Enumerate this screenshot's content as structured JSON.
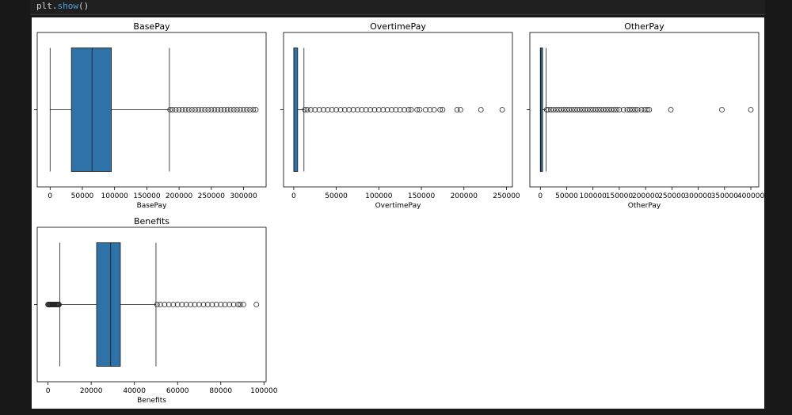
{
  "code": {
    "object": "plt",
    "dot": ".",
    "method": "show",
    "parens": "()"
  },
  "colors": {
    "box_fill": "#2e72a8",
    "box_edge": "#1a1a1a",
    "page_bg": "#181818",
    "figure_bg": "#ffffff"
  },
  "chart_data": [
    {
      "type": "boxplot",
      "title": "BasePay",
      "xlabel": "BasePay",
      "xlim": [
        -20000,
        335000
      ],
      "ticks": [
        0,
        50000,
        100000,
        150000,
        200000,
        250000,
        300000
      ],
      "tick_labels": [
        "0",
        "50000",
        "100000",
        "150000",
        "200000",
        "250000",
        "300000"
      ],
      "whisker_low": 0,
      "q1": 33000,
      "median": 65000,
      "q3": 95000,
      "whisker_high": 185000,
      "fliers_low": [],
      "fliers_high": [
        186000,
        190000,
        195000,
        200000,
        205000,
        210000,
        215000,
        220000,
        225000,
        230000,
        235000,
        240000,
        245000,
        250000,
        255000,
        260000,
        265000,
        270000,
        275000,
        280000,
        285000,
        290000,
        295000,
        300000,
        305000,
        310000,
        315000,
        319000
      ]
    },
    {
      "type": "boxplot",
      "title": "OvertimePay",
      "xlabel": "OvertimePay",
      "xlim": [
        -12000,
        257000
      ],
      "ticks": [
        0,
        50000,
        100000,
        150000,
        200000,
        250000
      ],
      "tick_labels": [
        "0",
        "50000",
        "100000",
        "150000",
        "200000",
        "250000"
      ],
      "whisker_low": 0,
      "q1": 0,
      "median": 0,
      "q3": 4600,
      "whisker_high": 12000,
      "fliers_low": [],
      "fliers_high": [
        13000,
        16000,
        20000,
        25000,
        30000,
        35000,
        40000,
        45000,
        50000,
        55000,
        60000,
        65000,
        70000,
        75000,
        80000,
        85000,
        90000,
        95000,
        100000,
        105000,
        110000,
        115000,
        120000,
        125000,
        130000,
        135000,
        138000,
        145000,
        148000,
        155000,
        160000,
        165000,
        172000,
        175000,
        192000,
        196000,
        220000,
        245000
      ]
    },
    {
      "type": "boxplot",
      "title": "OtherPay",
      "xlabel": "OtherPay",
      "xlim": [
        -20000,
        415000
      ],
      "ticks": [
        0,
        50000,
        100000,
        150000,
        200000,
        250000,
        300000,
        350000,
        400000
      ],
      "tick_labels": [
        "0",
        "50000",
        "100000",
        "150000",
        "200000",
        "250000",
        "300000",
        "350000",
        "400000"
      ],
      "whisker_low": 0,
      "q1": 0,
      "median": 800,
      "q3": 4200,
      "whisker_high": 11000,
      "fliers_low": [],
      "fliers_high": [
        12000,
        15000,
        20000,
        25000,
        30000,
        35000,
        40000,
        45000,
        50000,
        55000,
        60000,
        65000,
        70000,
        75000,
        80000,
        85000,
        90000,
        95000,
        100000,
        105000,
        110000,
        115000,
        120000,
        125000,
        130000,
        135000,
        140000,
        145000,
        150000,
        158000,
        165000,
        170000,
        175000,
        180000,
        185000,
        192000,
        198000,
        203000,
        207000,
        248000,
        345000,
        400000
      ]
    },
    {
      "type": "boxplot",
      "title": "Benefits",
      "xlabel": "Benefits",
      "xlim": [
        -5000,
        101000
      ],
      "ticks": [
        0,
        20000,
        40000,
        60000,
        80000,
        100000
      ],
      "tick_labels": [
        "0",
        "20000",
        "40000",
        "60000",
        "80000",
        "100000"
      ],
      "whisker_low": 5500,
      "q1": 22500,
      "median": 29000,
      "q3": 33500,
      "whisker_high": 50000,
      "fliers_low": [
        0,
        300,
        600,
        900,
        1200,
        1500,
        1800,
        2100,
        2400,
        2700,
        3000,
        3300,
        3600,
        3900,
        4200,
        4500,
        4800,
        5100
      ],
      "fliers_high": [
        50500,
        52000,
        54000,
        56000,
        58000,
        60000,
        62000,
        64000,
        66000,
        68000,
        70000,
        72000,
        74000,
        76000,
        78000,
        80000,
        82000,
        84000,
        86000,
        88000,
        89000,
        90500,
        96500
      ]
    }
  ]
}
